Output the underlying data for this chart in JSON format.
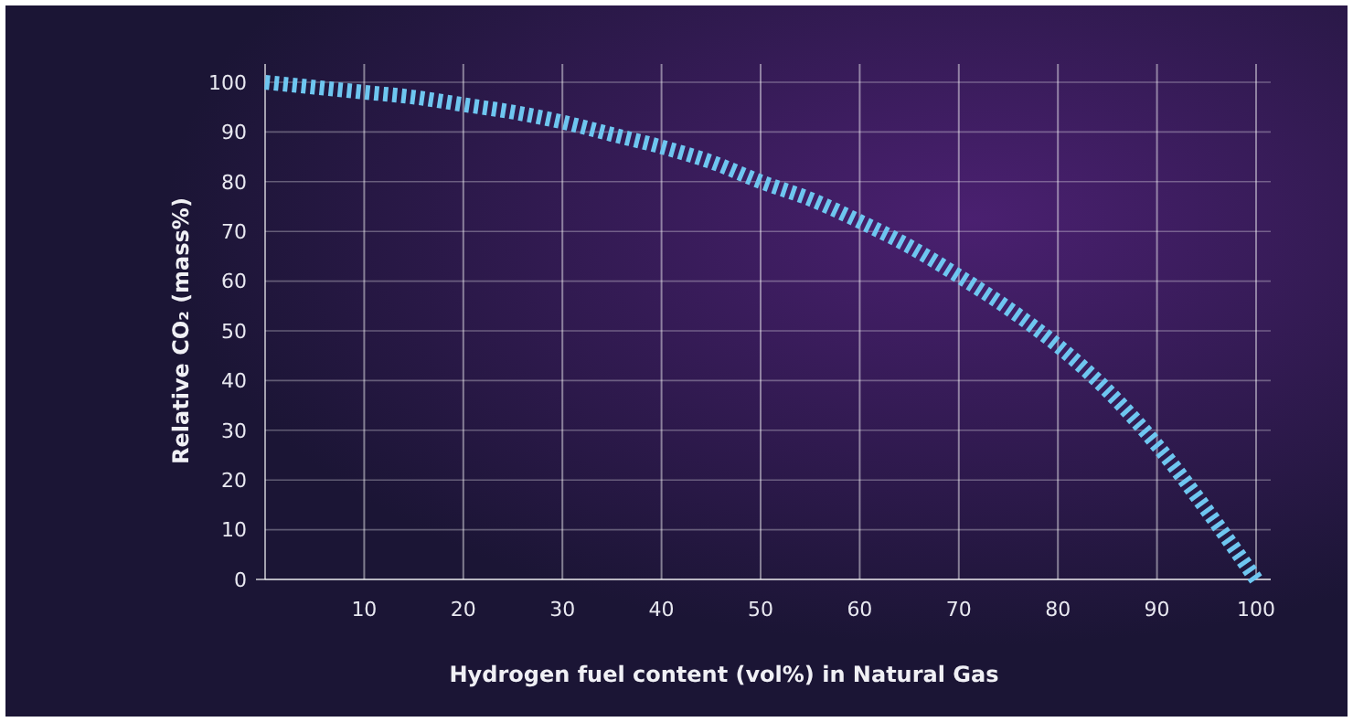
{
  "chart_data": {
    "type": "line",
    "xlabel": "Hydrogen fuel content (vol%) in Natural Gas",
    "ylabel": "Relative CO₂ (mass%)",
    "x": [
      0,
      5,
      10,
      15,
      20,
      25,
      30,
      35,
      40,
      45,
      50,
      55,
      60,
      65,
      70,
      75,
      80,
      85,
      90,
      95,
      100
    ],
    "series": [
      {
        "color": "#6ec6f0",
        "values": [
          100,
          99,
          98,
          97,
          95.5,
          94,
          92,
          89.5,
          87,
          84,
          80,
          76.5,
          72,
          67,
          61,
          54.5,
          47,
          38,
          27,
          14,
          0
        ]
      }
    ],
    "xlim": [
      0,
      100
    ],
    "xticks": [
      10,
      20,
      30,
      40,
      50,
      60,
      70,
      80,
      90,
      100
    ],
    "ylim": [
      0,
      100
    ],
    "yticks": [
      0,
      10,
      20,
      30,
      40,
      50,
      60,
      70,
      80,
      90,
      100
    ],
    "grid": true,
    "line_style": "dashed",
    "marker": "none"
  }
}
